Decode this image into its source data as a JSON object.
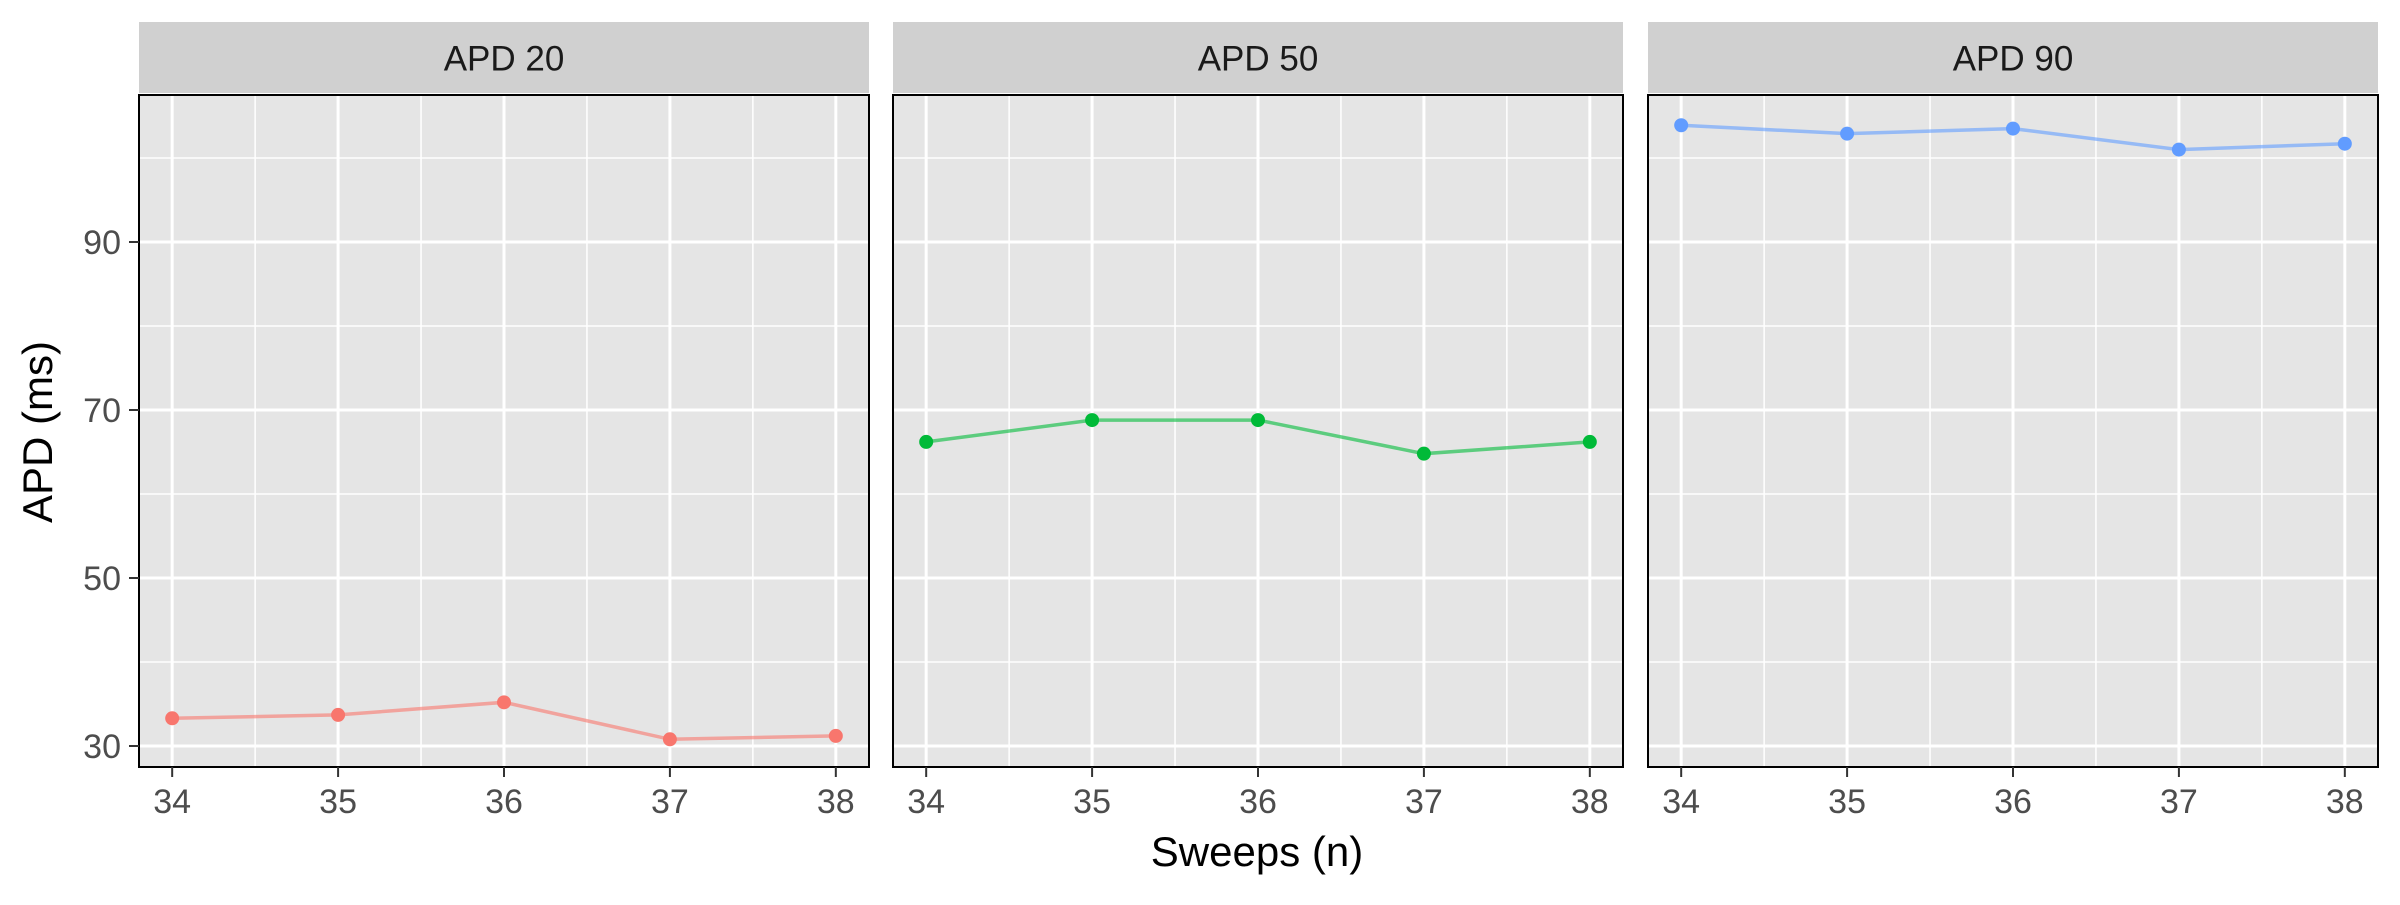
{
  "chart_data": {
    "type": "line",
    "xlabel": "Sweeps (n)",
    "ylabel": "APD (ms)",
    "x": [
      34,
      35,
      36,
      37,
      38
    ],
    "xlim": [
      33.8,
      38.2
    ],
    "ylim": [
      27.5,
      107.5
    ],
    "y_ticks": [
      30,
      50,
      70,
      90
    ],
    "y_minor_ticks": [
      40,
      60,
      80,
      100
    ],
    "x_ticks": [
      34,
      35,
      36,
      37,
      38
    ],
    "grid": true,
    "legend": "none",
    "panels": [
      {
        "title": "APD 20",
        "color": "#F8766D",
        "values": [
          33.3,
          33.7,
          35.2,
          30.8,
          31.2
        ]
      },
      {
        "title": "APD 50",
        "color": "#00BA38",
        "values": [
          66.2,
          68.8,
          68.8,
          64.8,
          66.2
        ]
      },
      {
        "title": "APD 90",
        "color": "#619CFF",
        "values": [
          103.9,
          102.9,
          103.5,
          101.0,
          101.7
        ]
      }
    ],
    "colors": {
      "panel_bg": "#E5E5E5",
      "strip_bg": "#D0D0D0",
      "grid": "#FFFFFF",
      "axis_text": "#4D4D4D",
      "title_text": "#000000"
    }
  }
}
